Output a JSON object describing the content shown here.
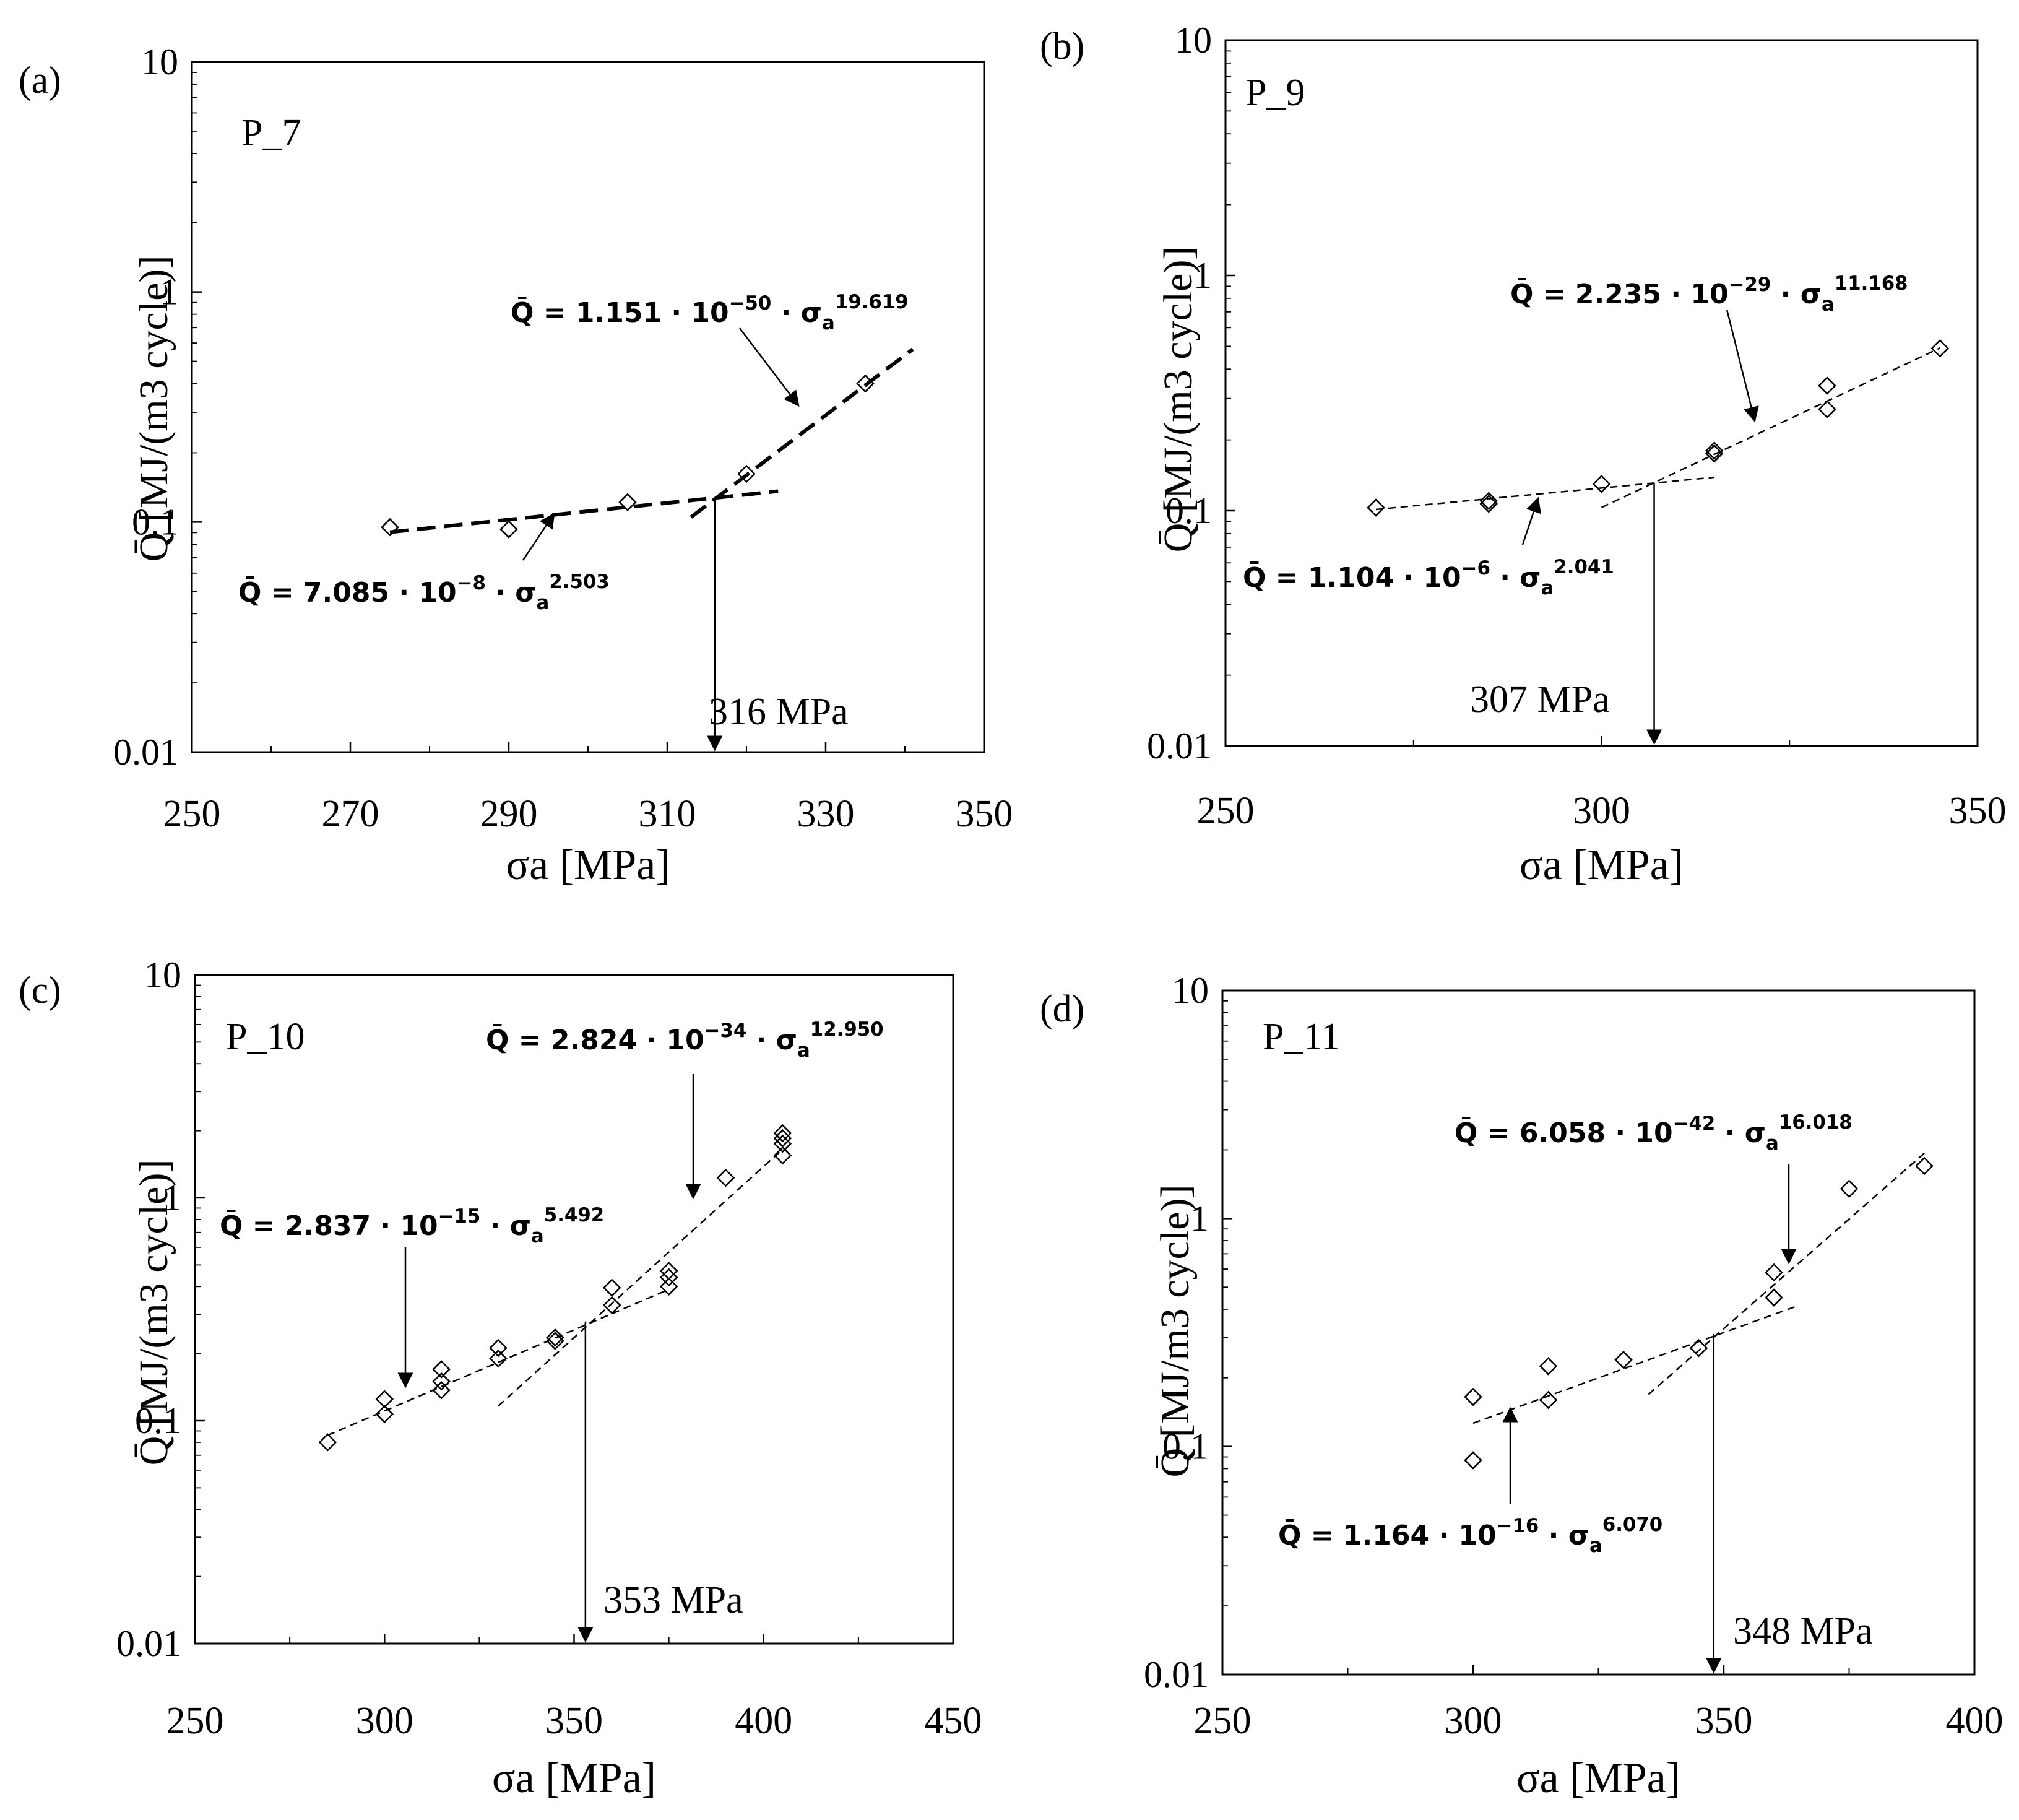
{
  "figure": {
    "background": "#ffffff",
    "ink": "#000000"
  },
  "chart_data": [
    {
      "type": "scatter",
      "panel_label": "(a)",
      "specimen": "P_7",
      "title": "",
      "xlabel": "σa [MPa]",
      "ylabel": "Q̄ [MJ/(m3 cycle)]",
      "xlim": [
        250,
        350
      ],
      "ylim": [
        0.01,
        10
      ],
      "yscale": "log",
      "xticks": [
        250,
        270,
        290,
        310,
        330,
        350
      ],
      "xtick_labels": [
        "250",
        "270",
        "290",
        "310",
        "330",
        "350"
      ],
      "yticks": [
        0.01,
        0.1,
        1,
        10
      ],
      "ytick_labels": [
        "0.01",
        "0.1",
        "1",
        "10"
      ],
      "points": [
        {
          "x": 275,
          "y": 0.095
        },
        {
          "x": 290,
          "y": 0.093
        },
        {
          "x": 305,
          "y": 0.122
        },
        {
          "x": 320,
          "y": 0.162
        },
        {
          "x": 335,
          "y": 0.4
        }
      ],
      "fits": [
        {
          "name": "low",
          "coef": 7.085e-08,
          "exp": 2.503,
          "x_range": [
            275,
            324
          ],
          "style": "bold-dash",
          "label": {
            "lhs": "Q̄ = 7.085 · 10",
            "pow": "−8",
            "mid": " · σ",
            "sub": "a",
            "exp": "2.503"
          }
        },
        {
          "name": "high",
          "coef": 1.151e-50,
          "exp": 19.619,
          "x_range": [
            313,
            341
          ],
          "style": "bold-dash",
          "label": {
            "lhs": "Q̄ = 1.151 · 10",
            "pow": "−50",
            "mid": " · σ",
            "sub": "a",
            "exp": "19.619"
          }
        }
      ],
      "threshold": {
        "value": 316,
        "label": "316 MPa"
      }
    },
    {
      "type": "scatter",
      "panel_label": "(b)",
      "specimen": "P_9",
      "title": "",
      "xlabel": "σa [MPa]",
      "ylabel": "Q̄ [MJ/(m3 cycle)]",
      "xlim": [
        250,
        350
      ],
      "ylim": [
        0.01,
        10
      ],
      "yscale": "log",
      "xticks": [
        250,
        300,
        350
      ],
      "xtick_labels": [
        "250",
        "300",
        "350"
      ],
      "yticks": [
        0.01,
        0.1,
        1,
        10
      ],
      "ytick_labels": [
        "0.01",
        "0.1",
        "1",
        "10"
      ],
      "points": [
        {
          "x": 270,
          "y": 0.103
        },
        {
          "x": 285,
          "y": 0.107
        },
        {
          "x": 285,
          "y": 0.11
        },
        {
          "x": 300,
          "y": 0.13
        },
        {
          "x": 315,
          "y": 0.175
        },
        {
          "x": 315,
          "y": 0.18
        },
        {
          "x": 330,
          "y": 0.27
        },
        {
          "x": 330,
          "y": 0.34
        },
        {
          "x": 345,
          "y": 0.49
        }
      ],
      "fits": [
        {
          "name": "low",
          "coef": 1.104e-06,
          "exp": 2.041,
          "x_range": [
            270,
            315
          ],
          "style": "dash",
          "label": {
            "lhs": "Q̄ = 1.104 · 10",
            "pow": "−6",
            "mid": " · σ",
            "sub": "a",
            "exp": "2.041"
          }
        },
        {
          "name": "high",
          "coef": 2.235e-29,
          "exp": 11.168,
          "x_range": [
            300,
            345
          ],
          "style": "dash",
          "label": {
            "lhs": "Q̄ = 2.235 · 10",
            "pow": "−29",
            "mid": " · σ",
            "sub": "a",
            "exp": "11.168"
          }
        }
      ],
      "threshold": {
        "value": 307,
        "label": "307 MPa"
      }
    },
    {
      "type": "scatter",
      "panel_label": "(c)",
      "specimen": "P_10",
      "title": "",
      "xlabel": "σa [MPa]",
      "ylabel": "Q̄ [MJ/(m3 cycle)]",
      "xlim": [
        250,
        450
      ],
      "ylim": [
        0.01,
        10
      ],
      "yscale": "log",
      "xticks": [
        250,
        300,
        350,
        400,
        450
      ],
      "xtick_labels": [
        "250",
        "300",
        "350",
        "400",
        "450"
      ],
      "yticks": [
        0.01,
        0.1,
        1,
        10
      ],
      "ytick_labels": [
        "0.01",
        "0.1",
        "1",
        "10"
      ],
      "points": [
        {
          "x": 285,
          "y": 0.08
        },
        {
          "x": 300,
          "y": 0.107
        },
        {
          "x": 300,
          "y": 0.125
        },
        {
          "x": 315,
          "y": 0.137
        },
        {
          "x": 315,
          "y": 0.15
        },
        {
          "x": 315,
          "y": 0.17
        },
        {
          "x": 330,
          "y": 0.19
        },
        {
          "x": 330,
          "y": 0.212
        },
        {
          "x": 345,
          "y": 0.228
        },
        {
          "x": 345,
          "y": 0.236
        },
        {
          "x": 360,
          "y": 0.33
        },
        {
          "x": 360,
          "y": 0.395
        },
        {
          "x": 375,
          "y": 0.4
        },
        {
          "x": 375,
          "y": 0.44
        },
        {
          "x": 375,
          "y": 0.47
        },
        {
          "x": 390,
          "y": 1.23
        },
        {
          "x": 405,
          "y": 1.55
        },
        {
          "x": 405,
          "y": 1.75
        },
        {
          "x": 405,
          "y": 1.85
        },
        {
          "x": 405,
          "y": 1.95
        }
      ],
      "fits": [
        {
          "name": "low",
          "coef": 2.837e-15,
          "exp": 5.492,
          "x_range": [
            285,
            375
          ],
          "style": "dash",
          "label": {
            "lhs": "Q̄ = 2.837 · 10",
            "pow": "−15",
            "mid": " · σ",
            "sub": "a",
            "exp": "5.492"
          }
        },
        {
          "name": "high",
          "coef": 2.824e-34,
          "exp": 12.95,
          "x_range": [
            330,
            405
          ],
          "style": "dash",
          "label": {
            "lhs": "Q̄ = 2.824 · 10",
            "pow": "−34",
            "mid": " · σ",
            "sub": "a",
            "exp": "12.950"
          }
        }
      ],
      "threshold": {
        "value": 353,
        "label": "353 MPa"
      }
    },
    {
      "type": "scatter",
      "panel_label": "(d)",
      "specimen": "P_11",
      "title": "",
      "xlabel": "σa [MPa]",
      "ylabel": "Q̄ [MJ/m3 cycle)]",
      "xlim": [
        250,
        400
      ],
      "ylim": [
        0.01,
        10
      ],
      "yscale": "log",
      "xticks": [
        250,
        300,
        350,
        400
      ],
      "xtick_labels": [
        "250",
        "300",
        "350",
        "400"
      ],
      "yticks": [
        0.01,
        0.1,
        1,
        10
      ],
      "ytick_labels": [
        "0.01",
        "0.1",
        "1",
        "10"
      ],
      "points": [
        {
          "x": 300,
          "y": 0.087
        },
        {
          "x": 300,
          "y": 0.165
        },
        {
          "x": 315,
          "y": 0.16
        },
        {
          "x": 315,
          "y": 0.225
        },
        {
          "x": 330,
          "y": 0.24
        },
        {
          "x": 345,
          "y": 0.27
        },
        {
          "x": 360,
          "y": 0.45
        },
        {
          "x": 360,
          "y": 0.58
        },
        {
          "x": 375,
          "y": 1.35
        },
        {
          "x": 390,
          "y": 1.7
        }
      ],
      "fits": [
        {
          "name": "low",
          "coef": 1.164e-16,
          "exp": 6.07,
          "x_range": [
            300,
            365
          ],
          "style": "dash",
          "label": {
            "lhs": "Q̄ = 1.164 · 10",
            "pow": "−16",
            "mid": " · σ",
            "sub": "a",
            "exp": "6.070"
          }
        },
        {
          "name": "high",
          "coef": 6.058e-42,
          "exp": 16.018,
          "x_range": [
            335,
            390
          ],
          "style": "dash",
          "label": {
            "lhs": "Q̄ = 6.058 · 10",
            "pow": "−42",
            "mid": " · σ",
            "sub": "a",
            "exp": "16.018"
          }
        }
      ],
      "threshold": {
        "value": 348,
        "label": "348 MPa"
      }
    }
  ]
}
